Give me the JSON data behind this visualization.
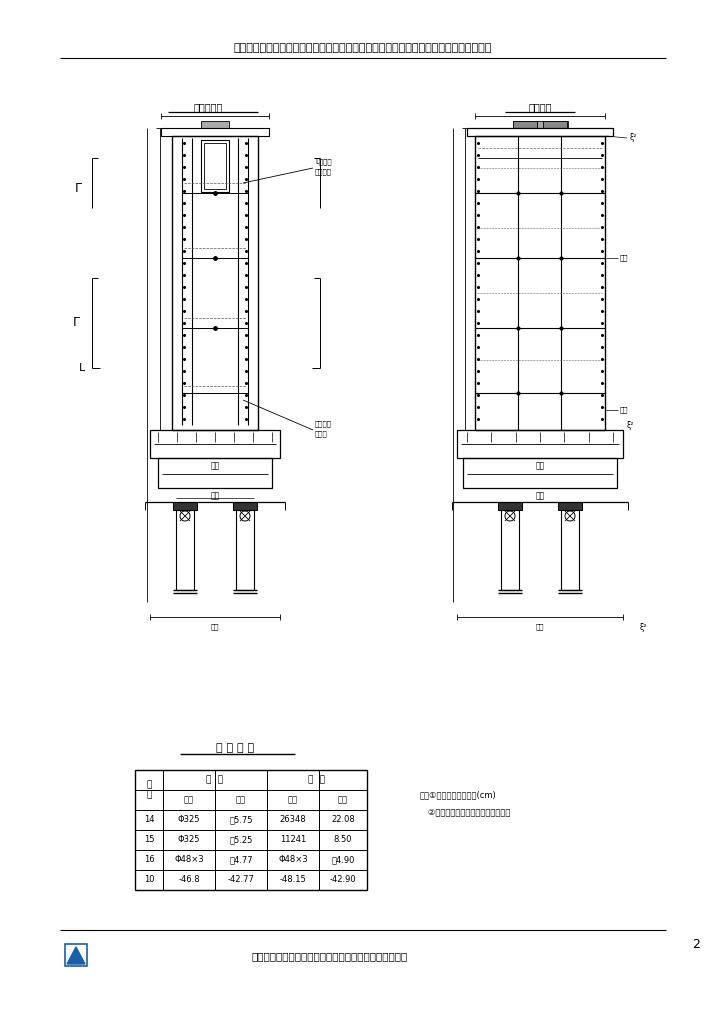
{
  "title": "沪蓉高速公路武汉至荆门段一期土建工程第五标段汉北河２号特大桥薄壁空心墩施工方案",
  "footer_text": "中铁十局集团有限公司武荆高速一期土建五标项目经理部",
  "page_number": "2",
  "left_title": "施工立面图",
  "right_title": "钢管立面",
  "table_title": "钢 管 数 量",
  "note1": "注：①钢管数量表中尺寸(cm)",
  "note2": "   ②钢管数量为近似值，以实际为准。",
  "bg": "#ffffff",
  "lc": "#000000"
}
